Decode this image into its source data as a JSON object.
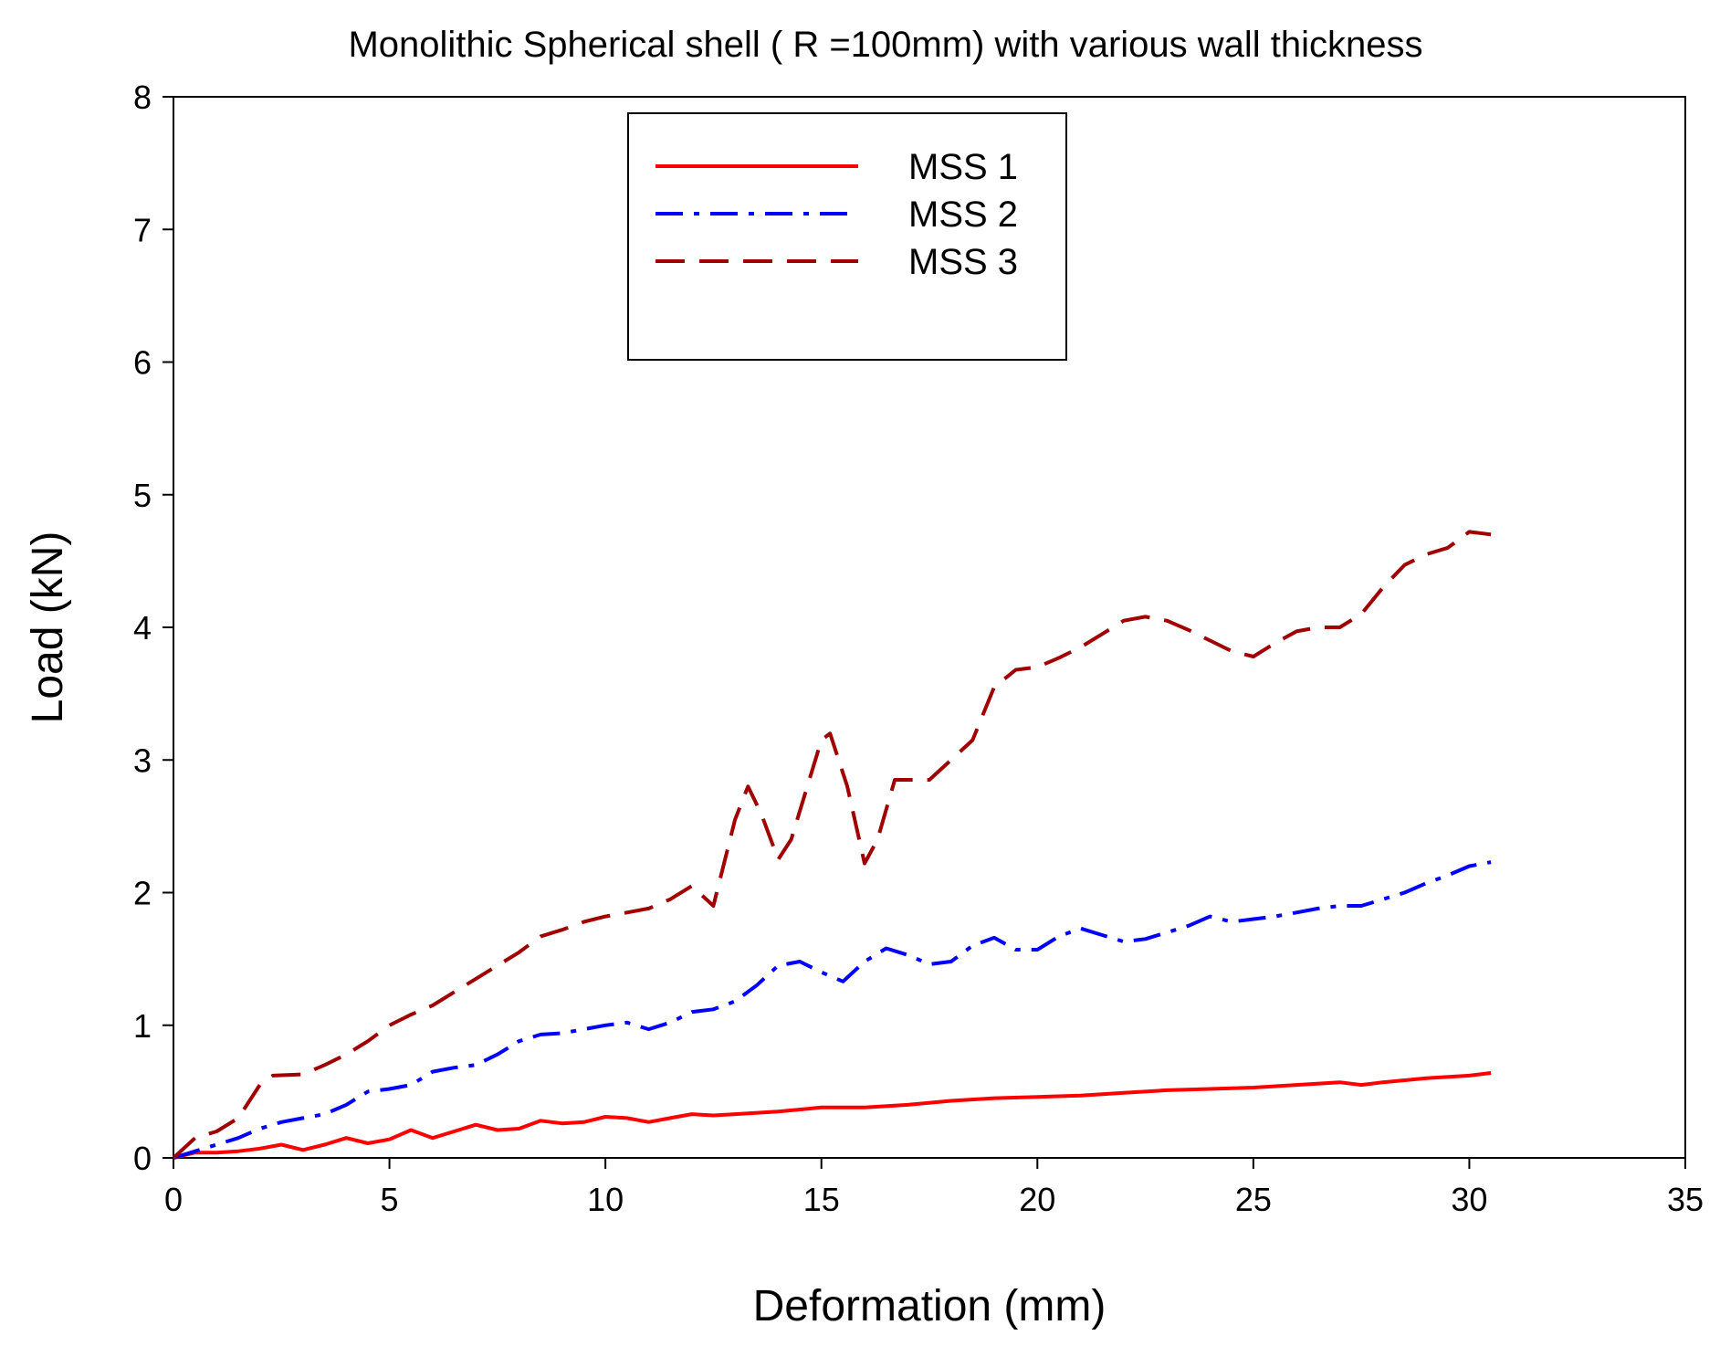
{
  "chart_data": {
    "type": "line",
    "title": "Monolithic Spherical shell ( R =100mm) with various wall thickness",
    "xlabel": "Deformation (mm)",
    "ylabel": "Load (kN)",
    "xlim": [
      0,
      35
    ],
    "ylim": [
      0,
      8
    ],
    "xticks": [
      0,
      5,
      10,
      15,
      20,
      25,
      30,
      35
    ],
    "yticks": [
      0,
      1,
      2,
      3,
      4,
      5,
      6,
      7,
      8
    ],
    "grid": false,
    "legend_position": "top-center",
    "series": [
      {
        "name": "MSS 1",
        "color": "#ff0000",
        "dash": "solid",
        "x": [
          0,
          0.5,
          1,
          1.5,
          2,
          2.5,
          3,
          3.5,
          4,
          4.5,
          5,
          5.5,
          6,
          6.5,
          7,
          7.5,
          8,
          8.5,
          9,
          9.5,
          10,
          10.5,
          11,
          11.5,
          12,
          12.5,
          13,
          14,
          15,
          16,
          17,
          18,
          19,
          20,
          21,
          22,
          23,
          24,
          25,
          26,
          27,
          27.5,
          28,
          29,
          30,
          30.5
        ],
        "y": [
          0,
          0.04,
          0.04,
          0.05,
          0.07,
          0.1,
          0.06,
          0.1,
          0.15,
          0.11,
          0.14,
          0.21,
          0.15,
          0.2,
          0.25,
          0.21,
          0.22,
          0.28,
          0.26,
          0.27,
          0.31,
          0.3,
          0.27,
          0.3,
          0.33,
          0.32,
          0.33,
          0.35,
          0.38,
          0.38,
          0.4,
          0.43,
          0.45,
          0.46,
          0.47,
          0.49,
          0.51,
          0.52,
          0.53,
          0.55,
          0.57,
          0.55,
          0.57,
          0.6,
          0.62,
          0.64
        ]
      },
      {
        "name": "MSS 2",
        "color": "#0000ff",
        "dash": "dashdot",
        "x": [
          0,
          0.5,
          1,
          1.5,
          2,
          2.5,
          3,
          3.5,
          4,
          4.5,
          5,
          5.5,
          6,
          6.5,
          7,
          7.5,
          8,
          8.5,
          9,
          9.5,
          10,
          10.5,
          11,
          11.5,
          12,
          12.5,
          13,
          13.5,
          14,
          14.5,
          15,
          15.5,
          16,
          16.5,
          17,
          17.5,
          18,
          18.5,
          19,
          19.5,
          20,
          20.5,
          21,
          21.5,
          22,
          22.5,
          23,
          23.5,
          24,
          24.5,
          25,
          25.5,
          26,
          26.5,
          27,
          27.5,
          28,
          28.5,
          29,
          29.5,
          30,
          30.5
        ],
        "y": [
          0,
          0.05,
          0.1,
          0.15,
          0.22,
          0.27,
          0.3,
          0.33,
          0.4,
          0.5,
          0.52,
          0.55,
          0.65,
          0.68,
          0.7,
          0.78,
          0.88,
          0.93,
          0.94,
          0.97,
          1.0,
          1.02,
          0.97,
          1.02,
          1.1,
          1.12,
          1.18,
          1.3,
          1.45,
          1.48,
          1.4,
          1.33,
          1.48,
          1.58,
          1.53,
          1.46,
          1.48,
          1.6,
          1.66,
          1.57,
          1.57,
          1.67,
          1.73,
          1.68,
          1.63,
          1.65,
          1.7,
          1.75,
          1.82,
          1.78,
          1.8,
          1.82,
          1.85,
          1.88,
          1.9,
          1.9,
          1.95,
          2.0,
          2.07,
          2.13,
          2.2,
          2.23
        ]
      },
      {
        "name": "MSS 3",
        "color": "#a00000",
        "dash": "dashed",
        "x": [
          0,
          0.5,
          1,
          1.5,
          2,
          2.3,
          3,
          3.5,
          4,
          4.5,
          5,
          5.5,
          6,
          6.5,
          7,
          7.5,
          8,
          8.5,
          9,
          9.5,
          10,
          10.5,
          11,
          11.5,
          12,
          12.5,
          13,
          13.3,
          13.6,
          14,
          14.3,
          15,
          15.2,
          15.6,
          16,
          16.3,
          16.7,
          17,
          17.5,
          18,
          18.5,
          19,
          19.5,
          20,
          20.5,
          21,
          21.5,
          22,
          22.5,
          23,
          23.5,
          24,
          24.5,
          25,
          25.5,
          26,
          26.5,
          27,
          27.5,
          28,
          28.5,
          29,
          29.5,
          30,
          30.5
        ],
        "y": [
          0,
          0.15,
          0.2,
          0.3,
          0.55,
          0.62,
          0.63,
          0.7,
          0.78,
          0.88,
          1.0,
          1.08,
          1.15,
          1.25,
          1.35,
          1.45,
          1.55,
          1.67,
          1.72,
          1.78,
          1.82,
          1.85,
          1.88,
          1.95,
          2.05,
          1.9,
          2.55,
          2.8,
          2.6,
          2.25,
          2.4,
          3.15,
          3.2,
          2.8,
          2.22,
          2.4,
          2.85,
          2.85,
          2.85,
          3.0,
          3.15,
          3.55,
          3.68,
          3.7,
          3.77,
          3.85,
          3.95,
          4.05,
          4.08,
          4.05,
          3.98,
          3.9,
          3.82,
          3.78,
          3.88,
          3.97,
          4.0,
          4.0,
          4.1,
          4.3,
          4.47,
          4.55,
          4.6,
          4.72,
          4.7
        ]
      }
    ]
  }
}
